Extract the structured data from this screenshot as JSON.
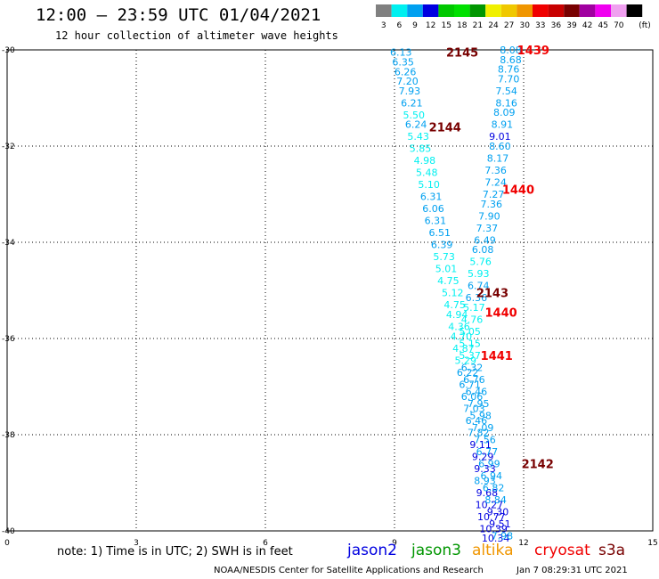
{
  "header": {
    "title": "12:00 — 23:59 UTC 01/04/2021",
    "subtitle": "12 hour collection of altimeter wave heights"
  },
  "legend": {
    "unit": "(ft)",
    "bins": [
      {
        "label": "3",
        "color": "#808080"
      },
      {
        "label": "6",
        "color": "#00f0f0"
      },
      {
        "label": "9",
        "color": "#00a0f0"
      },
      {
        "label": "12",
        "color": "#0000e0"
      },
      {
        "label": "15",
        "color": "#00c800"
      },
      {
        "label": "18",
        "color": "#00e000"
      },
      {
        "label": "21",
        "color": "#009600"
      },
      {
        "label": "24",
        "color": "#f0f000"
      },
      {
        "label": "27",
        "color": "#f0c800"
      },
      {
        "label": "30",
        "color": "#f09600"
      },
      {
        "label": "33",
        "color": "#f00000"
      },
      {
        "label": "36",
        "color": "#c80000"
      },
      {
        "label": "39",
        "color": "#780000"
      },
      {
        "label": "42",
        "color": "#a000a0"
      },
      {
        "label": "45",
        "color": "#f000f0"
      },
      {
        "label": "70",
        "color": "#f0a0f0"
      },
      {
        "label": "",
        "color": "#000000"
      }
    ]
  },
  "footer": {
    "note": "note:  1) Time is in UTC;  2) SWH is in feet",
    "satellites": [
      {
        "name": "jason2",
        "color": "#0000e0"
      },
      {
        "name": "jason3",
        "color": "#009600"
      },
      {
        "name": "altika",
        "color": "#f09600"
      },
      {
        "name": "cryosat",
        "color": "#f00000"
      },
      {
        "name": "s3a",
        "color": "#780000"
      }
    ],
    "credit": "NOAA/NESDIS Center for Satellite Applications and Research",
    "timestamp": "Jan  7 08:29:31 UTC 2021"
  },
  "chart_data": {
    "type": "scatter",
    "xlim": [
      0,
      15
    ],
    "ylim": [
      -40,
      -30
    ],
    "x_ticks": [
      "0",
      "3",
      "6",
      "9",
      "12",
      "15"
    ],
    "y_ticks": [
      "-30",
      "-32",
      "-34",
      "-36",
      "-38",
      "-40"
    ],
    "grid": true,
    "track_labels": [
      {
        "text": "2145",
        "lon": 10.2,
        "lat": -30.05,
        "color": "#780000"
      },
      {
        "text": "1439",
        "lon": 11.85,
        "lat": -30.0,
        "color": "#f00000"
      },
      {
        "text": "2144",
        "lon": 9.8,
        "lat": -31.6,
        "color": "#780000"
      },
      {
        "text": "1440",
        "lon": 11.5,
        "lat": -32.9,
        "color": "#f00000"
      },
      {
        "text": "2143",
        "lon": 10.9,
        "lat": -35.05,
        "color": "#780000"
      },
      {
        "text": "1440",
        "lon": 11.1,
        "lat": -35.45,
        "color": "#f00000"
      },
      {
        "text": "1441",
        "lon": 11.0,
        "lat": -36.35,
        "color": "#f00000"
      },
      {
        "text": "2142",
        "lon": 11.95,
        "lat": -38.6,
        "color": "#780000"
      }
    ],
    "series": [
      {
        "track": "2145",
        "points": [
          {
            "lon": 9.15,
            "lat": -30.05,
            "swh": "6.13",
            "color": "#00a0f0"
          },
          {
            "lon": 9.2,
            "lat": -30.25,
            "swh": "6.35",
            "color": "#00a0f0"
          },
          {
            "lon": 9.25,
            "lat": -30.45,
            "swh": "6.26",
            "color": "#00a0f0"
          },
          {
            "lon": 9.3,
            "lat": -30.65,
            "swh": "7.20",
            "color": "#00a0f0"
          },
          {
            "lon": 9.35,
            "lat": -30.85,
            "swh": "7.93",
            "color": "#00a0f0"
          },
          {
            "lon": 9.4,
            "lat": -31.1,
            "swh": "6.21",
            "color": "#00a0f0"
          },
          {
            "lon": 9.45,
            "lat": -31.35,
            "swh": "5.50",
            "color": "#00f0f0"
          },
          {
            "lon": 9.5,
            "lat": -31.55,
            "swh": "6.24",
            "color": "#00a0f0"
          },
          {
            "lon": 9.55,
            "lat": -31.8,
            "swh": "5.43",
            "color": "#00f0f0"
          },
          {
            "lon": 9.6,
            "lat": -32.05,
            "swh": "5.85",
            "color": "#00f0f0"
          },
          {
            "lon": 9.7,
            "lat": -32.3,
            "swh": "4.98",
            "color": "#00f0f0"
          },
          {
            "lon": 9.75,
            "lat": -32.55,
            "swh": "5.48",
            "color": "#00f0f0"
          },
          {
            "lon": 9.8,
            "lat": -32.8,
            "swh": "5.10",
            "color": "#00f0f0"
          },
          {
            "lon": 9.85,
            "lat": -33.05,
            "swh": "6.31",
            "color": "#00a0f0"
          },
          {
            "lon": 9.9,
            "lat": -33.3,
            "swh": "6.06",
            "color": "#00a0f0"
          },
          {
            "lon": 9.95,
            "lat": -33.55,
            "swh": "6.31",
            "color": "#00a0f0"
          },
          {
            "lon": 10.05,
            "lat": -33.8,
            "swh": "6.51",
            "color": "#00a0f0"
          },
          {
            "lon": 10.1,
            "lat": -34.05,
            "swh": "6.39",
            "color": "#00a0f0"
          },
          {
            "lon": 10.15,
            "lat": -34.3,
            "swh": "5.73",
            "color": "#00f0f0"
          },
          {
            "lon": 10.2,
            "lat": -34.55,
            "swh": "5.01",
            "color": "#00f0f0"
          },
          {
            "lon": 10.25,
            "lat": -34.8,
            "swh": "4.75",
            "color": "#00f0f0"
          },
          {
            "lon": 10.35,
            "lat": -35.05,
            "swh": "5.12",
            "color": "#00f0f0"
          },
          {
            "lon": 10.4,
            "lat": -35.3,
            "swh": "4.75",
            "color": "#00f0f0"
          },
          {
            "lon": 10.45,
            "lat": -35.5,
            "swh": "4.94",
            "color": "#00f0f0"
          },
          {
            "lon": 10.5,
            "lat": -35.75,
            "swh": "4.36",
            "color": "#00f0f0"
          },
          {
            "lon": 10.55,
            "lat": -35.95,
            "swh": "4.70",
            "color": "#00f0f0"
          },
          {
            "lon": 10.6,
            "lat": -36.2,
            "swh": "4.87",
            "color": "#00f0f0"
          },
          {
            "lon": 10.65,
            "lat": -36.45,
            "swh": "5.29",
            "color": "#00f0f0"
          },
          {
            "lon": 10.7,
            "lat": -36.7,
            "swh": "6.22",
            "color": "#00a0f0"
          },
          {
            "lon": 10.75,
            "lat": -36.95,
            "swh": "6.71",
            "color": "#00a0f0"
          },
          {
            "lon": 10.8,
            "lat": -37.2,
            "swh": "6.06",
            "color": "#00a0f0"
          },
          {
            "lon": 10.85,
            "lat": -37.45,
            "swh": "7.03",
            "color": "#00a0f0"
          },
          {
            "lon": 10.9,
            "lat": -37.7,
            "swh": "6.46",
            "color": "#00a0f0"
          },
          {
            "lon": 10.95,
            "lat": -37.95,
            "swh": "7.82",
            "color": "#00a0f0"
          },
          {
            "lon": 11.0,
            "lat": -38.2,
            "swh": "9.11",
            "color": "#0000e0"
          },
          {
            "lon": 11.05,
            "lat": -38.45,
            "swh": "9.29",
            "color": "#0000e0"
          },
          {
            "lon": 11.1,
            "lat": -38.7,
            "swh": "9.33",
            "color": "#0000e0"
          },
          {
            "lon": 11.1,
            "lat": -38.95,
            "swh": "8.93",
            "color": "#00a0f0"
          },
          {
            "lon": 11.15,
            "lat": -39.2,
            "swh": "9.68",
            "color": "#0000e0"
          },
          {
            "lon": 11.2,
            "lat": -39.45,
            "swh": "10.27",
            "color": "#0000e0"
          },
          {
            "lon": 11.25,
            "lat": -39.7,
            "swh": "10.77",
            "color": "#0000e0"
          },
          {
            "lon": 11.3,
            "lat": -39.95,
            "swh": "10.39",
            "color": "#0000e0"
          },
          {
            "lon": 11.35,
            "lat": -40.15,
            "swh": "10.34",
            "color": "#0000e0"
          }
        ]
      },
      {
        "track": "1439",
        "points": [
          {
            "lon": 11.7,
            "lat": -30.0,
            "swh": "8.08",
            "color": "#00a0f0"
          },
          {
            "lon": 11.7,
            "lat": -30.2,
            "swh": "8.68",
            "color": "#00a0f0"
          },
          {
            "lon": 11.65,
            "lat": -30.4,
            "swh": "8.76",
            "color": "#00a0f0"
          },
          {
            "lon": 11.65,
            "lat": -30.6,
            "swh": "7.70",
            "color": "#00a0f0"
          },
          {
            "lon": 11.6,
            "lat": -30.85,
            "swh": "7.54",
            "color": "#00a0f0"
          },
          {
            "lon": 11.6,
            "lat": -31.1,
            "swh": "8.16",
            "color": "#00a0f0"
          },
          {
            "lon": 11.55,
            "lat": -31.3,
            "swh": "8.09",
            "color": "#00a0f0"
          },
          {
            "lon": 11.5,
            "lat": -31.55,
            "swh": "8.91",
            "color": "#00a0f0"
          },
          {
            "lon": 11.45,
            "lat": -31.8,
            "swh": "9.01",
            "color": "#0000e0"
          },
          {
            "lon": 11.45,
            "lat": -32.0,
            "swh": "8.60",
            "color": "#00a0f0"
          },
          {
            "lon": 11.4,
            "lat": -32.25,
            "swh": "8.17",
            "color": "#00a0f0"
          },
          {
            "lon": 11.35,
            "lat": -32.5,
            "swh": "7.36",
            "color": "#00a0f0"
          },
          {
            "lon": 11.35,
            "lat": -32.75,
            "swh": "7.24",
            "color": "#00a0f0"
          },
          {
            "lon": 11.3,
            "lat": -33.0,
            "swh": "7.27",
            "color": "#00a0f0"
          },
          {
            "lon": 11.25,
            "lat": -33.2,
            "swh": "7.36",
            "color": "#00a0f0"
          },
          {
            "lon": 11.2,
            "lat": -33.45,
            "swh": "7.90",
            "color": "#00a0f0"
          },
          {
            "lon": 11.15,
            "lat": -33.7,
            "swh": "7.37",
            "color": "#00a0f0"
          },
          {
            "lon": 11.1,
            "lat": -33.95,
            "swh": "6.49",
            "color": "#00a0f0"
          },
          {
            "lon": 11.05,
            "lat": -34.15,
            "swh": "6.08",
            "color": "#00a0f0"
          },
          {
            "lon": 11.0,
            "lat": -34.4,
            "swh": "5.76",
            "color": "#00f0f0"
          },
          {
            "lon": 10.95,
            "lat": -34.65,
            "swh": "5.93",
            "color": "#00f0f0"
          },
          {
            "lon": 10.95,
            "lat": -34.9,
            "swh": "6.74",
            "color": "#00a0f0"
          },
          {
            "lon": 10.9,
            "lat": -35.15,
            "swh": "6.36",
            "color": "#00a0f0"
          },
          {
            "lon": 10.85,
            "lat": -35.35,
            "swh": "5.17",
            "color": "#00f0f0"
          },
          {
            "lon": 10.8,
            "lat": -35.6,
            "swh": "4.76",
            "color": "#00f0f0"
          },
          {
            "lon": 10.75,
            "lat": -35.85,
            "swh": "5.05",
            "color": "#00f0f0"
          },
          {
            "lon": 10.75,
            "lat": -36.1,
            "swh": "5.15",
            "color": "#00f0f0"
          },
          {
            "lon": 10.75,
            "lat": -36.35,
            "swh": "5.37",
            "color": "#00f0f0"
          },
          {
            "lon": 10.8,
            "lat": -36.6,
            "swh": "6.32",
            "color": "#00a0f0"
          },
          {
            "lon": 10.85,
            "lat": -36.85,
            "swh": "6.76",
            "color": "#00a0f0"
          },
          {
            "lon": 10.9,
            "lat": -37.1,
            "swh": "6.46",
            "color": "#00a0f0"
          },
          {
            "lon": 10.95,
            "lat": -37.35,
            "swh": "7.95",
            "color": "#00a0f0"
          },
          {
            "lon": 11.0,
            "lat": -37.6,
            "swh": "5.98",
            "color": "#00a0f0"
          },
          {
            "lon": 11.05,
            "lat": -37.85,
            "swh": "7.09",
            "color": "#00a0f0"
          },
          {
            "lon": 11.1,
            "lat": -38.1,
            "swh": "7.56",
            "color": "#00a0f0"
          },
          {
            "lon": 11.15,
            "lat": -38.35,
            "swh": "6.77",
            "color": "#00a0f0"
          },
          {
            "lon": 11.2,
            "lat": -38.6,
            "swh": "6.99",
            "color": "#00a0f0"
          },
          {
            "lon": 11.25,
            "lat": -38.85,
            "swh": "6.94",
            "color": "#00a0f0"
          },
          {
            "lon": 11.3,
            "lat": -39.1,
            "swh": "6.82",
            "color": "#00a0f0"
          },
          {
            "lon": 11.35,
            "lat": -39.35,
            "swh": "8.84",
            "color": "#00a0f0"
          },
          {
            "lon": 11.4,
            "lat": -39.6,
            "swh": "9.30",
            "color": "#0000e0"
          },
          {
            "lon": 11.45,
            "lat": -39.85,
            "swh": "9.51",
            "color": "#0000e0"
          },
          {
            "lon": 11.5,
            "lat": -40.1,
            "swh": "7.98",
            "color": "#00a0f0"
          }
        ]
      }
    ]
  }
}
